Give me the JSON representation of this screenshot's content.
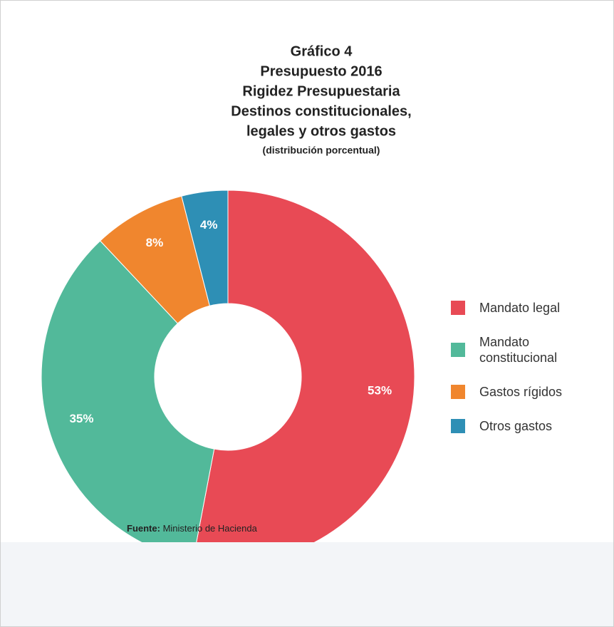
{
  "chart_data": {
    "type": "pie",
    "title": [
      "Gráfico 4",
      "Presupuesto 2016",
      "Rigidez Presupuestaria",
      "Destinos constitucionales,",
      "legales y otros gastos"
    ],
    "subtitle": "(distribución porcentual)",
    "categories": [
      "Mandato legal",
      "Mandato constitucional",
      "Gastos rígidos",
      "Otros gastos"
    ],
    "values": [
      53,
      35,
      8,
      4
    ],
    "value_labels": [
      "53%",
      "35%",
      "8%",
      "4%"
    ],
    "colors": [
      "#e84a55",
      "#52b99a",
      "#f0862e",
      "#2e8fb5"
    ],
    "legend": "right",
    "source_label": "Fuente:",
    "source": "Ministerio de Hacienda"
  }
}
